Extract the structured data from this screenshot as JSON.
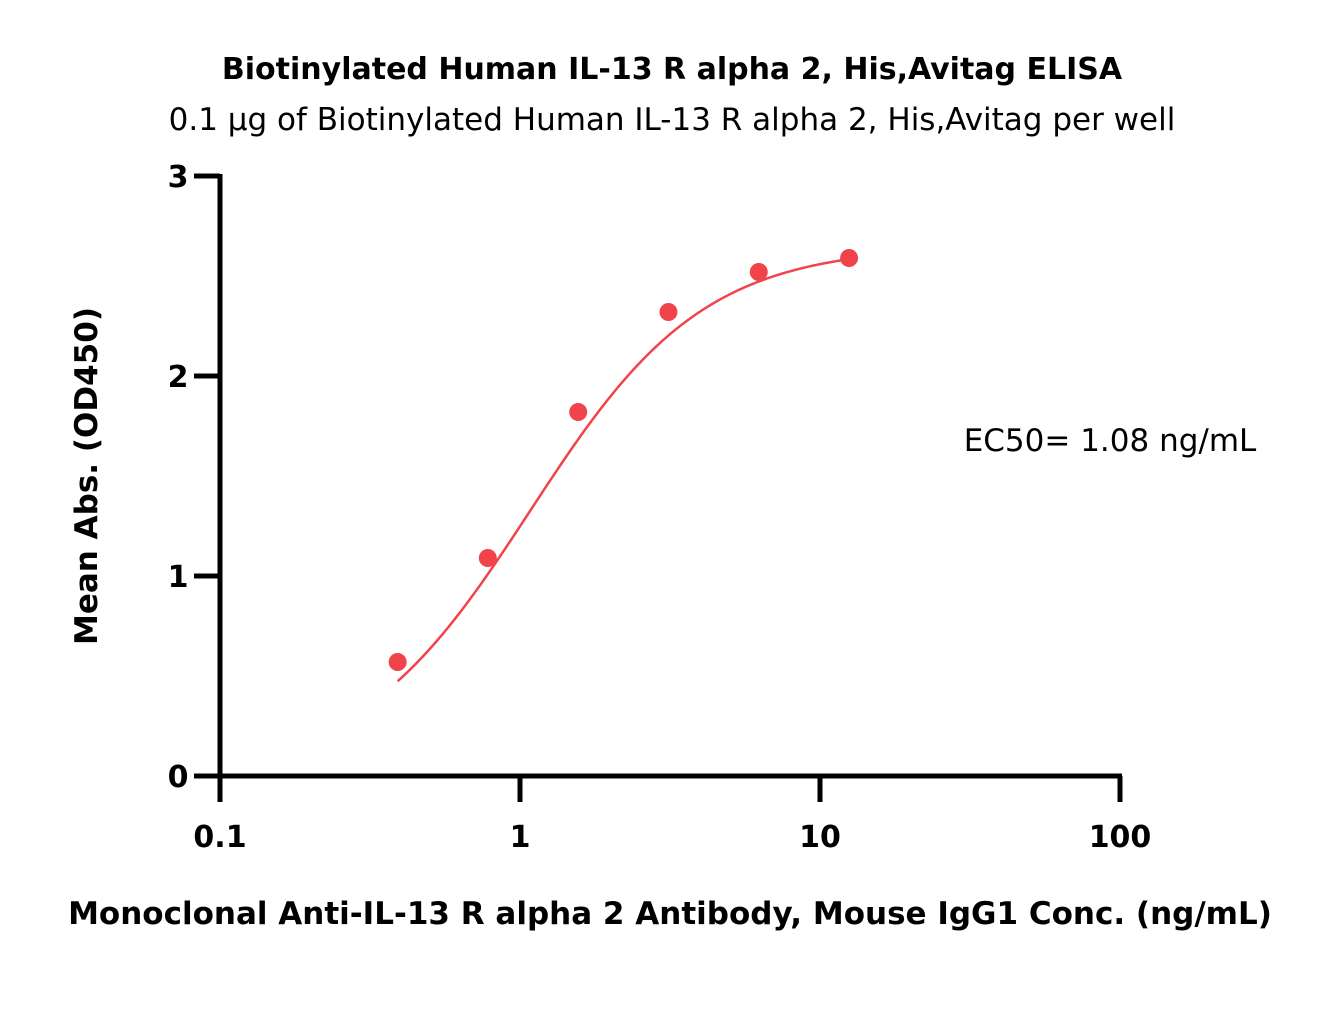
{
  "chart_data": {
    "type": "scatter",
    "title": "Biotinylated Human IL-13 R alpha 2, His,Avitag ELISA",
    "subtitle": "0.1 μg of Biotinylated Human IL-13 R alpha 2, His,Avitag per well",
    "xlabel": "Monoclonal Anti-IL-13 R alpha 2 Antibody, Mouse IgG1 Conc. (ng/mL)",
    "ylabel": "Mean Abs. (OD450)",
    "x_scale": "log",
    "xlim": [
      0.1,
      100
    ],
    "ylim": [
      0,
      3
    ],
    "x_ticks": [
      {
        "value": 0.1,
        "label": "0.1"
      },
      {
        "value": 1,
        "label": "1"
      },
      {
        "value": 10,
        "label": "10"
      },
      {
        "value": 100,
        "label": "100"
      }
    ],
    "y_ticks": [
      {
        "value": 0,
        "label": "0"
      },
      {
        "value": 1,
        "label": "1"
      },
      {
        "value": 2,
        "label": "2"
      },
      {
        "value": 3,
        "label": "3"
      }
    ],
    "grid": false,
    "legend": "none",
    "color": "#f0444a",
    "series": [
      {
        "x": [
          0.391,
          0.781,
          1.563,
          3.125,
          6.25,
          12.5
        ],
        "y": [
          0.57,
          1.09,
          1.82,
          2.32,
          2.52,
          2.59
        ]
      }
    ],
    "fit": {
      "bottom": 0.0,
      "top": 2.65,
      "ec50": 1.08,
      "hill": 1.5
    },
    "annotation": "EC50= 1.08 ng/mL"
  }
}
